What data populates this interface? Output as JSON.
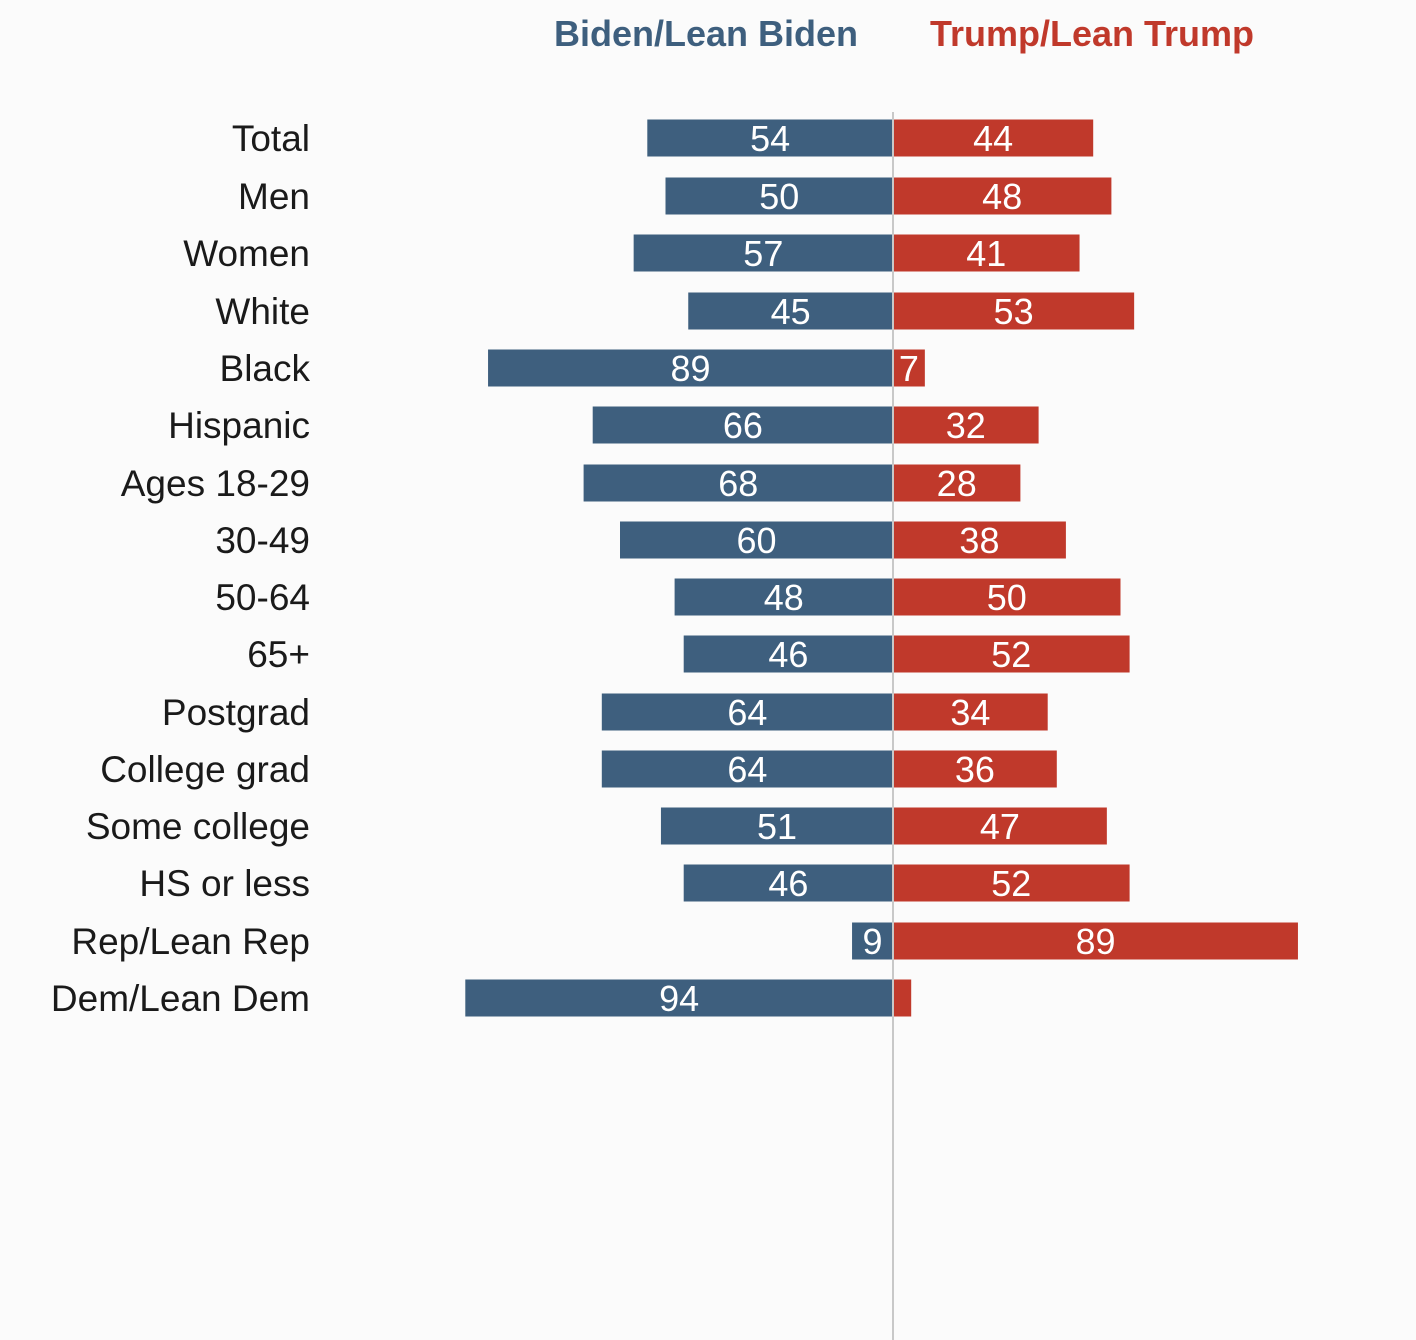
{
  "colors": {
    "biden": "#3e5f7e",
    "trump": "#c0392b",
    "axis": "#c8c8c8",
    "text": "#1a1a1a"
  },
  "legend": {
    "biden": "Biden/Lean Biden",
    "trump": "Trump/Lean Trump"
  },
  "chart_data": {
    "type": "bar",
    "orientation": "horizontal-diverging",
    "title": "",
    "xlabel": "",
    "ylabel": "",
    "legend_position": "top",
    "grid": false,
    "categories": [
      "Total",
      "Men",
      "Women",
      "White",
      "Black",
      "Hispanic",
      "Ages 18-29",
      "30-49",
      "50-64",
      "65+",
      "Postgrad",
      "College grad",
      "Some college",
      "HS or less",
      "Rep/Lean Rep",
      "Dem/Lean Dem"
    ],
    "groups": [
      [
        "Total"
      ],
      [
        "Men",
        "Women"
      ],
      [
        "White",
        "Black",
        "Hispanic"
      ],
      [
        "Ages 18-29",
        "30-49",
        "50-64",
        "65+"
      ],
      [
        "Postgrad",
        "College grad",
        "Some college",
        "HS or less"
      ],
      [
        "Rep/Lean Rep",
        "Dem/Lean Dem"
      ]
    ],
    "series": [
      {
        "name": "Biden/Lean Biden",
        "direction": "left",
        "values": [
          54,
          50,
          57,
          45,
          89,
          66,
          68,
          60,
          48,
          46,
          64,
          64,
          51,
          46,
          9,
          94
        ],
        "labels": [
          "54",
          "50",
          "57",
          "45",
          "89",
          "66",
          "68",
          "60",
          "48",
          "46",
          "64",
          "64",
          "51",
          "46",
          "9",
          "94"
        ]
      },
      {
        "name": "Trump/Lean Trump",
        "direction": "right",
        "values": [
          44,
          48,
          41,
          53,
          7,
          32,
          28,
          38,
          50,
          52,
          34,
          36,
          47,
          52,
          89,
          4
        ],
        "labels": [
          "44",
          "48",
          "41",
          "53",
          "7",
          "32",
          "28",
          "38",
          "50",
          "52",
          "34",
          "36",
          "47",
          "52",
          "89",
          ""
        ]
      }
    ]
  }
}
